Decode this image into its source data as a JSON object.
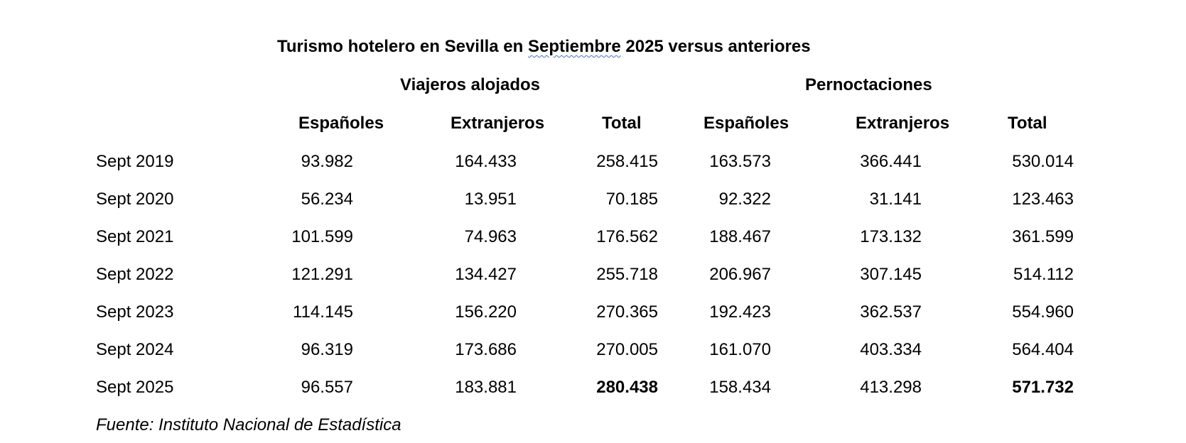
{
  "title": {
    "pre": "Turismo hotelero en Sevilla en ",
    "marked": "Septiembre",
    "post": " 2025 versus anteriores"
  },
  "groups": [
    "Viajeros alojados",
    "Pernoctaciones"
  ],
  "columns": [
    "Españoles",
    "Extranjeros",
    "Total",
    "Españoles",
    "Extranjeros",
    "Total"
  ],
  "rows": [
    {
      "label": "Sept 2019",
      "values": [
        "93.982",
        "164.433",
        "258.415",
        "163.573",
        "366.441",
        "530.014"
      ]
    },
    {
      "label": "Sept 2020",
      "values": [
        "56.234",
        "13.951",
        "70.185",
        "92.322",
        "31.141",
        "123.463"
      ]
    },
    {
      "label": "Sept 2021",
      "values": [
        "101.599",
        "74.963",
        "176.562",
        "188.467",
        "173.132",
        "361.599"
      ]
    },
    {
      "label": "Sept 2022",
      "values": [
        "121.291",
        "134.427",
        "255.718",
        "206.967",
        "307.145",
        "514.112"
      ]
    },
    {
      "label": "Sept 2023",
      "values": [
        "114.145",
        "156.220",
        "270.365",
        "192.423",
        "362.537",
        "554.960"
      ]
    },
    {
      "label": "Sept 2024",
      "values": [
        "96.319",
        "173.686",
        "270.005",
        "161.070",
        "403.334",
        "564.404"
      ]
    },
    {
      "label": "Sept 2025",
      "values": [
        "96.557",
        "183.881",
        "280.438",
        "158.434",
        "413.298",
        "571.732"
      ]
    }
  ],
  "source": "Fuente: Instituto Nacional de Estadística"
}
